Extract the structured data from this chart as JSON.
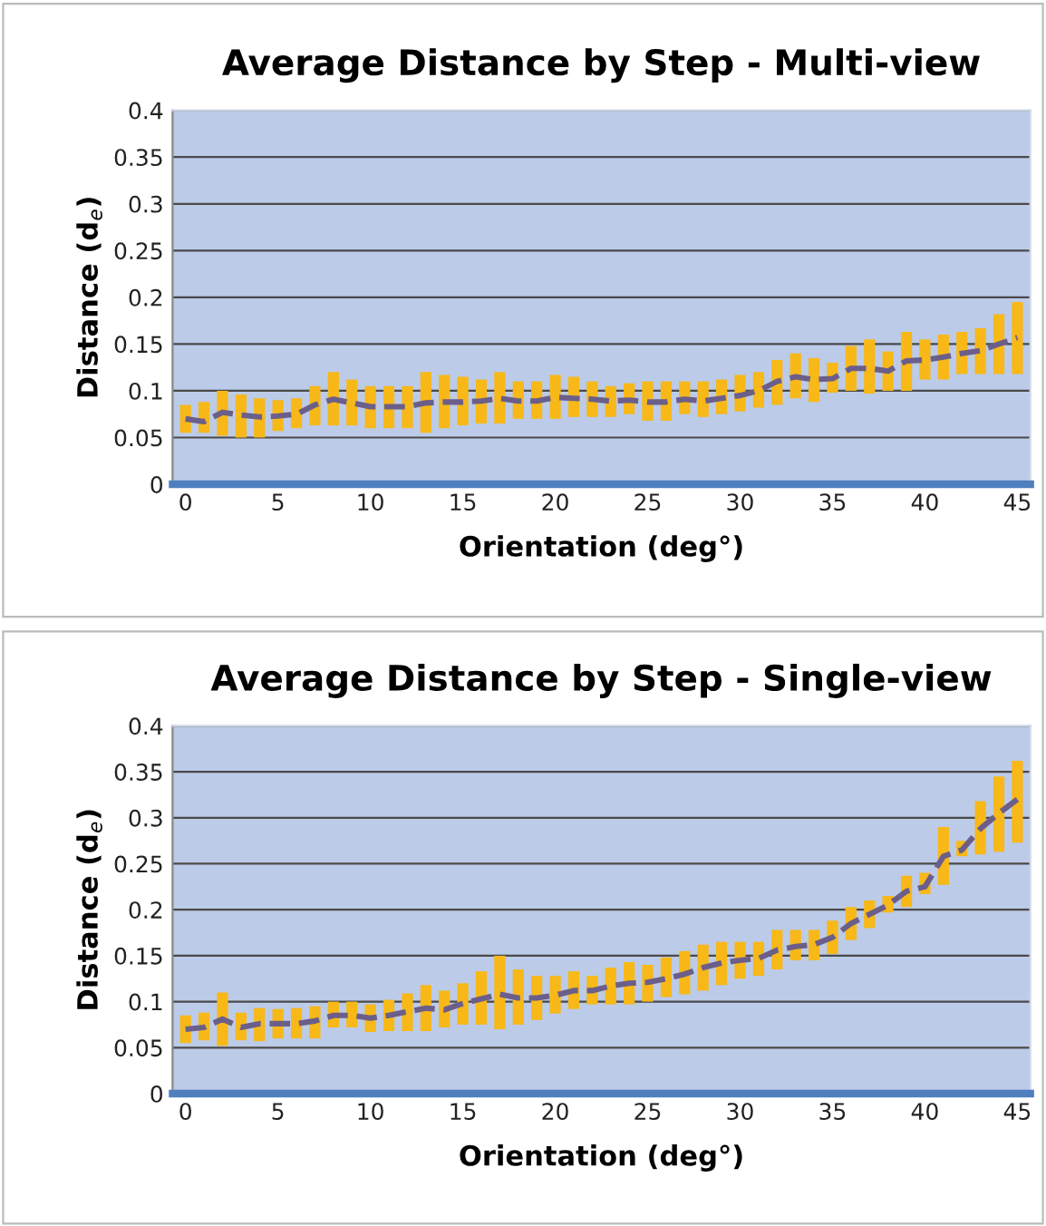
{
  "chart_data": [
    {
      "type": "bar",
      "title": "Average Distance by Step - Multi-view",
      "xlabel": "Orientation (deg°)",
      "ylabel": "Distance (d$_{e}$)",
      "x": [
        0,
        1,
        2,
        3,
        4,
        5,
        6,
        7,
        8,
        9,
        10,
        11,
        12,
        13,
        14,
        15,
        16,
        17,
        18,
        19,
        20,
        21,
        22,
        23,
        24,
        25,
        26,
        27,
        28,
        29,
        30,
        31,
        32,
        33,
        34,
        35,
        36,
        37,
        38,
        39,
        40,
        41,
        42,
        43,
        44,
        45
      ],
      "xlim": [
        -0.7,
        45.7
      ],
      "xticks": [
        0,
        5,
        10,
        15,
        20,
        25,
        30,
        35,
        40,
        45
      ],
      "ylim": [
        0,
        0.4
      ],
      "yticks": [
        0,
        0.05,
        0.1,
        0.15,
        0.2,
        0.25,
        0.3,
        0.35,
        0.4
      ],
      "grid": "y",
      "legend": false,
      "series": [
        {
          "color": "#f7b818",
          "base": [
            0.055,
            0.055,
            0.052,
            0.05,
            0.05,
            0.057,
            0.06,
            0.063,
            0.063,
            0.063,
            0.06,
            0.06,
            0.06,
            0.055,
            0.06,
            0.063,
            0.065,
            0.065,
            0.07,
            0.07,
            0.07,
            0.072,
            0.072,
            0.072,
            0.075,
            0.068,
            0.068,
            0.075,
            0.072,
            0.075,
            0.078,
            0.082,
            0.085,
            0.092,
            0.088,
            0.098,
            0.1,
            0.097,
            0.1,
            0.1,
            0.112,
            0.112,
            0.118,
            0.118,
            0.118,
            0.118
          ],
          "values": [
            0.03,
            0.033,
            0.048,
            0.046,
            0.042,
            0.033,
            0.032,
            0.042,
            0.057,
            0.049,
            0.045,
            0.045,
            0.045,
            0.065,
            0.057,
            0.052,
            0.047,
            0.055,
            0.04,
            0.04,
            0.047,
            0.043,
            0.038,
            0.033,
            0.033,
            0.042,
            0.042,
            0.035,
            0.038,
            0.037,
            0.039,
            0.038,
            0.048,
            0.048,
            0.047,
            0.032,
            0.048,
            0.058,
            0.042,
            0.063,
            0.043,
            0.048,
            0.045,
            0.049,
            0.064,
            0.077
          ]
        },
        {
          "type": "line",
          "color": "#6b5f8a",
          "line_style": "dashed",
          "marker": "none",
          "values": [
            0.07,
            0.067,
            0.077,
            0.074,
            0.072,
            0.073,
            0.075,
            0.085,
            0.091,
            0.087,
            0.083,
            0.083,
            0.083,
            0.087,
            0.088,
            0.088,
            0.089,
            0.092,
            0.089,
            0.089,
            0.093,
            0.092,
            0.091,
            0.089,
            0.09,
            0.088,
            0.088,
            0.091,
            0.089,
            0.092,
            0.095,
            0.1,
            0.11,
            0.115,
            0.112,
            0.113,
            0.124,
            0.124,
            0.121,
            0.132,
            0.133,
            0.136,
            0.14,
            0.143,
            0.15,
            0.157
          ]
        }
      ]
    },
    {
      "type": "bar",
      "title": "Average Distance by Step - Single-view",
      "xlabel": "Orientation (deg°)",
      "ylabel": "Distance (d$_{e}$)",
      "x": [
        0,
        1,
        2,
        3,
        4,
        5,
        6,
        7,
        8,
        9,
        10,
        11,
        12,
        13,
        14,
        15,
        16,
        17,
        18,
        19,
        20,
        21,
        22,
        23,
        24,
        25,
        26,
        27,
        28,
        29,
        30,
        31,
        32,
        33,
        34,
        35,
        36,
        37,
        38,
        39,
        40,
        41,
        42,
        43,
        44,
        45
      ],
      "xlim": [
        -0.7,
        45.7
      ],
      "xticks": [
        0,
        5,
        10,
        15,
        20,
        25,
        30,
        35,
        40,
        45
      ],
      "ylim": [
        0,
        0.4
      ],
      "yticks": [
        0,
        0.05,
        0.1,
        0.15,
        0.2,
        0.25,
        0.3,
        0.35,
        0.4
      ],
      "grid": "y",
      "legend": false,
      "series": [
        {
          "color": "#f7b818",
          "base": [
            0.055,
            0.058,
            0.052,
            0.058,
            0.057,
            0.06,
            0.06,
            0.06,
            0.072,
            0.072,
            0.067,
            0.068,
            0.068,
            0.068,
            0.072,
            0.075,
            0.075,
            0.07,
            0.075,
            0.08,
            0.087,
            0.092,
            0.097,
            0.097,
            0.097,
            0.1,
            0.105,
            0.108,
            0.112,
            0.118,
            0.125,
            0.128,
            0.135,
            0.145,
            0.145,
            0.152,
            0.167,
            0.18,
            0.197,
            0.203,
            0.217,
            0.227,
            0.258,
            0.26,
            0.263,
            0.273
          ],
          "values": [
            0.03,
            0.03,
            0.058,
            0.03,
            0.036,
            0.032,
            0.033,
            0.035,
            0.028,
            0.028,
            0.03,
            0.034,
            0.041,
            0.05,
            0.04,
            0.045,
            0.058,
            0.08,
            0.06,
            0.048,
            0.041,
            0.041,
            0.031,
            0.04,
            0.046,
            0.04,
            0.043,
            0.047,
            0.05,
            0.047,
            0.04,
            0.037,
            0.043,
            0.033,
            0.033,
            0.036,
            0.036,
            0.03,
            0.018,
            0.034,
            0.023,
            0.063,
            0.017,
            0.058,
            0.082,
            0.089
          ]
        },
        {
          "type": "line",
          "color": "#6b5f8a",
          "line_style": "dashed",
          "marker": "none",
          "values": [
            0.07,
            0.072,
            0.081,
            0.072,
            0.076,
            0.076,
            0.076,
            0.079,
            0.085,
            0.085,
            0.082,
            0.085,
            0.089,
            0.093,
            0.091,
            0.098,
            0.103,
            0.108,
            0.104,
            0.104,
            0.107,
            0.112,
            0.112,
            0.117,
            0.12,
            0.121,
            0.125,
            0.13,
            0.137,
            0.142,
            0.145,
            0.147,
            0.156,
            0.16,
            0.162,
            0.17,
            0.185,
            0.195,
            0.205,
            0.22,
            0.225,
            0.258,
            0.265,
            0.288,
            0.305,
            0.32
          ]
        }
      ]
    }
  ]
}
